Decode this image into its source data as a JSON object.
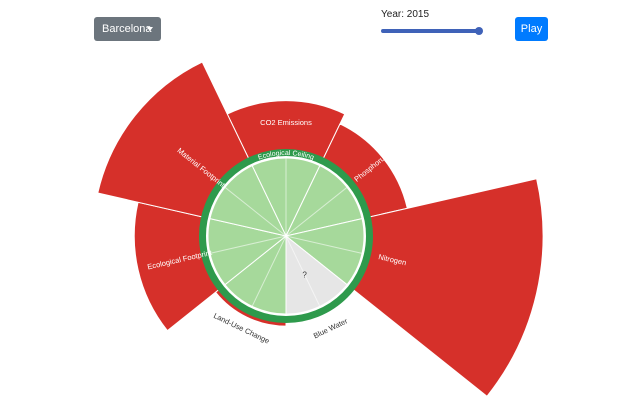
{
  "controls": {
    "city": "Barcelona",
    "year_label": "Year: 2015",
    "year_value": 2015,
    "play_label": "Play"
  },
  "colors": {
    "overshoot": "#d6302a",
    "ceiling_ring": "#2e9a4c",
    "inner_fill": "#a6d99b",
    "unknown_fill": "#e6e6e6"
  },
  "chart_data": {
    "type": "radial-bar",
    "ceiling_label": "Ecological Ceiling",
    "segments": [
      {
        "name": "CO2 Emissions",
        "overshoot": 0.62,
        "status": "over"
      },
      {
        "name": "Phosphorus",
        "overshoot": 0.48,
        "status": "over"
      },
      {
        "name": "Nitrogen",
        "overshoot": 2.18,
        "status": "over"
      },
      {
        "name": "Blue Water",
        "overshoot": 0.0,
        "status": "unknown",
        "marker": "?"
      },
      {
        "name": "Land-Use Change",
        "overshoot": 0.04,
        "status": "over"
      },
      {
        "name": "Ecological Footprint",
        "overshoot": 0.83,
        "status": "over"
      },
      {
        "name": "Material Footprint",
        "overshoot": 1.36,
        "status": "over"
      }
    ]
  }
}
